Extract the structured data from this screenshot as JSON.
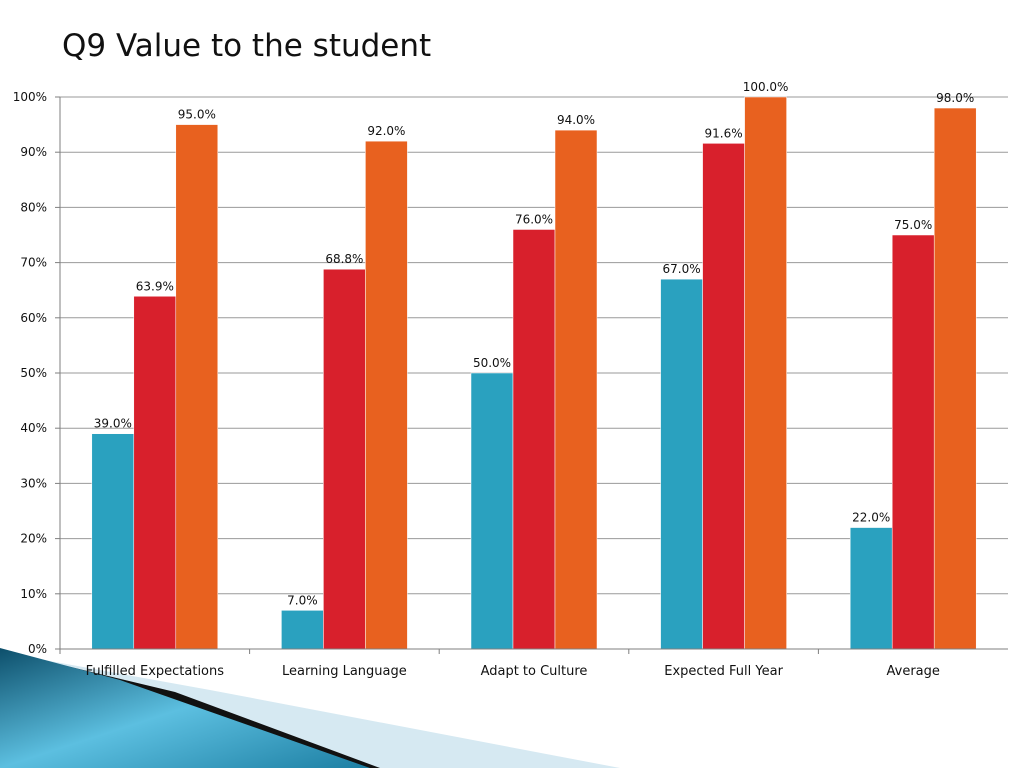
{
  "slide": {
    "title": "Q9 Value to the student"
  },
  "colors": {
    "series": [
      "#2aa1bf",
      "#d8202c",
      "#e8611f"
    ],
    "grid": "#9a9a9a",
    "axis": "#7f7f7f",
    "bar_edge": "#ffffff",
    "decor_dark": "#0d4f6b",
    "decor_light": "#5cbfe0",
    "decor_pale": "#d6e9f2"
  },
  "chart_data": {
    "type": "bar",
    "title": "Q9 Value to the student",
    "xlabel": "",
    "ylabel": "",
    "ylim": [
      0,
      100
    ],
    "y_ticks": [
      "0%",
      "10%",
      "20%",
      "30%",
      "40%",
      "50%",
      "60%",
      "70%",
      "80%",
      "90%",
      "100%"
    ],
    "grid": true,
    "legend": "none",
    "categories": [
      "Fulfilled Expectations",
      "Learning Language",
      "Adapt to Culture",
      "Expected Full Year",
      "Average"
    ],
    "series": [
      {
        "values": [
          39.0,
          7.0,
          50.0,
          67.0,
          22.0
        ],
        "labels": [
          "39.0%",
          "7.0%",
          "50.0%",
          "67.0%",
          "22.0%"
        ]
      },
      {
        "values": [
          63.9,
          68.8,
          76.0,
          91.6,
          75.0
        ],
        "labels": [
          "63.9%",
          "68.8%",
          "76.0%",
          "91.6%",
          "75.0%"
        ]
      },
      {
        "values": [
          95.0,
          92.0,
          94.0,
          100.0,
          98.0
        ],
        "labels": [
          "95.0%",
          "92.0%",
          "94.0%",
          "100.0%",
          "98.0%"
        ]
      }
    ]
  }
}
